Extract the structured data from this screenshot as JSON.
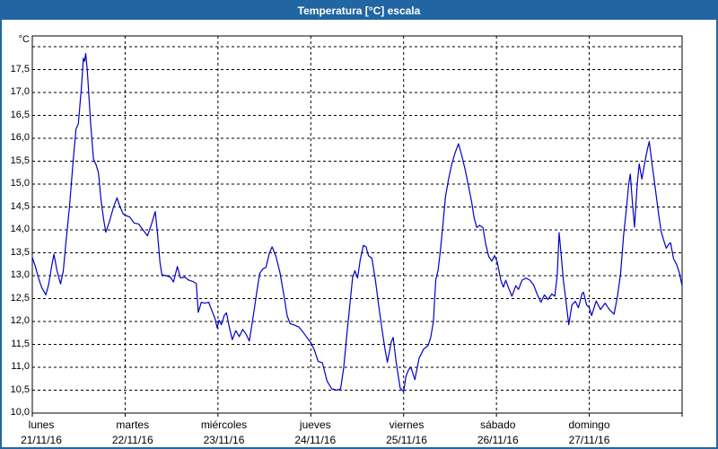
{
  "window": {
    "title": "Temperatura [°C] escala"
  },
  "colors": {
    "titlebar_bg": "#2166a2",
    "frame": "#2166a2",
    "line": "#0000c8",
    "grid": "#000000",
    "text": "#000000",
    "plot_bg": "#ffffff"
  },
  "chart_data": {
    "type": "line",
    "title": "Temperatura [°C] escala",
    "ylabel": "°C",
    "ylim": [
      10.0,
      18.2
    ],
    "ytick_step": 0.5,
    "grid": "dashed",
    "legend": "none",
    "yticks": [
      {
        "value": 17.5,
        "label": "17,5"
      },
      {
        "value": 17.0,
        "label": "17,0"
      },
      {
        "value": 16.5,
        "label": "16,5"
      },
      {
        "value": 16.0,
        "label": "16,0"
      },
      {
        "value": 15.5,
        "label": "15,5"
      },
      {
        "value": 15.0,
        "label": "15,0"
      },
      {
        "value": 14.5,
        "label": "14,5"
      },
      {
        "value": 14.0,
        "label": "14,0"
      },
      {
        "value": 13.5,
        "label": "13,5"
      },
      {
        "value": 13.0,
        "label": "13,0"
      },
      {
        "value": 12.5,
        "label": "12,5"
      },
      {
        "value": 12.0,
        "label": "12,0"
      },
      {
        "value": 11.5,
        "label": "11,5"
      },
      {
        "value": 11.0,
        "label": "11,0"
      },
      {
        "value": 10.5,
        "label": "10,5"
      },
      {
        "value": 10.0,
        "label": "10,0"
      }
    ],
    "days": [
      {
        "name": "lunes",
        "date": "21/11/16"
      },
      {
        "name": "martes",
        "date": "22/11/16"
      },
      {
        "name": "miércoles",
        "date": "23/11/16"
      },
      {
        "name": "jueves",
        "date": "24/11/16"
      },
      {
        "name": "viernes",
        "date": "25/11/16"
      },
      {
        "name": "sábado",
        "date": "26/11/16"
      },
      {
        "name": "domingo",
        "date": "27/11/16"
      }
    ],
    "x_unit": "hours_since_monday_00",
    "series": [
      {
        "name": "Temperatura",
        "color": "#0000c8",
        "points": [
          [
            0,
            13.4
          ],
          [
            0.8,
            13.2
          ],
          [
            1.6,
            12.95
          ],
          [
            2.4,
            12.75
          ],
          [
            3.5,
            12.58
          ],
          [
            4.2,
            12.8
          ],
          [
            5.0,
            13.2
          ],
          [
            5.6,
            13.47
          ],
          [
            6.4,
            13.1
          ],
          [
            7.3,
            12.82
          ],
          [
            8.0,
            13.1
          ],
          [
            8.6,
            13.65
          ],
          [
            9.6,
            14.5
          ],
          [
            10.6,
            15.55
          ],
          [
            11.3,
            16.2
          ],
          [
            11.9,
            16.32
          ],
          [
            12.7,
            17.1
          ],
          [
            13.2,
            17.75
          ],
          [
            13.5,
            17.68
          ],
          [
            13.8,
            17.85
          ],
          [
            14.2,
            17.5
          ],
          [
            15.1,
            16.3
          ],
          [
            15.8,
            15.55
          ],
          [
            16.5,
            15.42
          ],
          [
            17.1,
            15.25
          ],
          [
            17.7,
            14.7
          ],
          [
            18.4,
            14.25
          ],
          [
            19.0,
            13.95
          ],
          [
            20.0,
            14.2
          ],
          [
            21.0,
            14.5
          ],
          [
            21.9,
            14.7
          ],
          [
            22.7,
            14.5
          ],
          [
            23.5,
            14.35
          ],
          [
            24.0,
            14.32
          ],
          [
            25.2,
            14.28
          ],
          [
            26.3,
            14.15
          ],
          [
            27.5,
            14.13
          ],
          [
            28.6,
            14.0
          ],
          [
            29.8,
            13.87
          ],
          [
            30.9,
            14.15
          ],
          [
            31.8,
            14.4
          ],
          [
            32.4,
            13.9
          ],
          [
            33.0,
            13.3
          ],
          [
            33.5,
            13.02
          ],
          [
            34.6,
            13.0
          ],
          [
            35.7,
            12.97
          ],
          [
            36.5,
            12.86
          ],
          [
            37.5,
            13.2
          ],
          [
            38.3,
            12.95
          ],
          [
            39.4,
            12.97
          ],
          [
            40.5,
            12.9
          ],
          [
            41.6,
            12.87
          ],
          [
            42.4,
            12.83
          ],
          [
            42.9,
            12.2
          ],
          [
            43.7,
            12.42
          ],
          [
            44.6,
            12.4
          ],
          [
            45.6,
            12.42
          ],
          [
            46.5,
            12.22
          ],
          [
            47.2,
            12.07
          ],
          [
            47.8,
            11.86
          ],
          [
            48.3,
            12.03
          ],
          [
            48.9,
            11.93
          ],
          [
            49.6,
            12.13
          ],
          [
            50.2,
            12.19
          ],
          [
            51.0,
            11.85
          ],
          [
            51.7,
            11.6
          ],
          [
            52.6,
            11.8
          ],
          [
            53.5,
            11.67
          ],
          [
            54.4,
            11.83
          ],
          [
            55.3,
            11.72
          ],
          [
            56.1,
            11.57
          ],
          [
            57.2,
            12.16
          ],
          [
            58.1,
            12.68
          ],
          [
            58.8,
            13.05
          ],
          [
            59.6,
            13.15
          ],
          [
            60.4,
            13.18
          ],
          [
            61.3,
            13.5
          ],
          [
            62.0,
            13.63
          ],
          [
            63.0,
            13.42
          ],
          [
            64.0,
            13.08
          ],
          [
            65.0,
            12.6
          ],
          [
            65.9,
            12.12
          ],
          [
            66.7,
            11.95
          ],
          [
            67.8,
            11.92
          ],
          [
            68.9,
            11.88
          ],
          [
            69.9,
            11.78
          ],
          [
            71.0,
            11.65
          ],
          [
            72.0,
            11.54
          ],
          [
            72.9,
            11.38
          ],
          [
            73.9,
            11.13
          ],
          [
            75.0,
            11.1
          ],
          [
            76.2,
            10.7
          ],
          [
            77.4,
            10.53
          ],
          [
            78.7,
            10.5
          ],
          [
            79.7,
            10.53
          ],
          [
            80.5,
            10.98
          ],
          [
            81.3,
            11.7
          ],
          [
            82.1,
            12.36
          ],
          [
            82.8,
            12.95
          ],
          [
            83.4,
            13.11
          ],
          [
            84.1,
            12.95
          ],
          [
            84.8,
            13.35
          ],
          [
            85.6,
            13.66
          ],
          [
            86.3,
            13.63
          ],
          [
            86.9,
            13.44
          ],
          [
            87.8,
            13.38
          ],
          [
            88.7,
            12.9
          ],
          [
            89.5,
            12.38
          ],
          [
            90.3,
            11.9
          ],
          [
            91.1,
            11.44
          ],
          [
            91.8,
            11.11
          ],
          [
            92.8,
            11.55
          ],
          [
            93.3,
            11.65
          ],
          [
            94.1,
            11.1
          ],
          [
            95.1,
            10.55
          ],
          [
            96.0,
            10.47
          ],
          [
            96.6,
            10.8
          ],
          [
            97.3,
            10.95
          ],
          [
            97.9,
            11.0
          ],
          [
            98.9,
            10.73
          ],
          [
            100.0,
            11.2
          ],
          [
            101.2,
            11.4
          ],
          [
            102.3,
            11.47
          ],
          [
            103.0,
            11.65
          ],
          [
            103.7,
            12.0
          ],
          [
            104.3,
            12.9
          ],
          [
            104.9,
            13.12
          ],
          [
            105.5,
            13.55
          ],
          [
            106.1,
            14.05
          ],
          [
            106.8,
            14.72
          ],
          [
            107.6,
            15.1
          ],
          [
            108.4,
            15.42
          ],
          [
            109.3,
            15.68
          ],
          [
            110.2,
            15.88
          ],
          [
            111.1,
            15.6
          ],
          [
            112.0,
            15.28
          ],
          [
            112.8,
            14.95
          ],
          [
            113.6,
            14.6
          ],
          [
            114.2,
            14.28
          ],
          [
            114.9,
            14.05
          ],
          [
            115.6,
            14.1
          ],
          [
            116.5,
            14.05
          ],
          [
            117.2,
            13.7
          ],
          [
            118.0,
            13.42
          ],
          [
            118.8,
            13.32
          ],
          [
            119.5,
            13.44
          ],
          [
            120.2,
            13.3
          ],
          [
            121.2,
            12.88
          ],
          [
            121.8,
            12.75
          ],
          [
            122.4,
            12.9
          ],
          [
            123.2,
            12.72
          ],
          [
            124.0,
            12.55
          ],
          [
            125.0,
            12.78
          ],
          [
            125.7,
            12.7
          ],
          [
            126.6,
            12.9
          ],
          [
            127.6,
            12.95
          ],
          [
            128.7,
            12.9
          ],
          [
            129.6,
            12.8
          ],
          [
            130.5,
            12.6
          ],
          [
            131.5,
            12.42
          ],
          [
            132.4,
            12.58
          ],
          [
            133.3,
            12.48
          ],
          [
            134.3,
            12.6
          ],
          [
            135.1,
            12.55
          ],
          [
            135.7,
            13.0
          ],
          [
            136.2,
            13.94
          ],
          [
            136.8,
            13.4
          ],
          [
            137.3,
            12.9
          ],
          [
            137.9,
            12.5
          ],
          [
            138.7,
            11.93
          ],
          [
            139.5,
            12.36
          ],
          [
            140.4,
            12.44
          ],
          [
            141.2,
            12.3
          ],
          [
            142.1,
            12.6
          ],
          [
            142.5,
            12.64
          ],
          [
            143.3,
            12.36
          ],
          [
            144.0,
            12.3
          ],
          [
            144.6,
            12.13
          ],
          [
            145.8,
            12.45
          ],
          [
            146.9,
            12.26
          ],
          [
            148.1,
            12.4
          ],
          [
            149.3,
            12.25
          ],
          [
            150.4,
            12.16
          ],
          [
            151.3,
            12.55
          ],
          [
            152.1,
            13.05
          ],
          [
            152.9,
            13.9
          ],
          [
            153.6,
            14.45
          ],
          [
            154.2,
            15.0
          ],
          [
            154.6,
            15.22
          ],
          [
            155.2,
            14.55
          ],
          [
            155.7,
            14.06
          ],
          [
            156.4,
            15.0
          ],
          [
            156.9,
            15.44
          ],
          [
            157.6,
            15.11
          ],
          [
            158.3,
            15.45
          ],
          [
            159.0,
            15.75
          ],
          [
            159.5,
            15.93
          ],
          [
            160.3,
            15.4
          ],
          [
            161.1,
            14.88
          ],
          [
            161.9,
            14.36
          ],
          [
            162.6,
            13.96
          ],
          [
            163.4,
            13.73
          ],
          [
            163.9,
            13.6
          ],
          [
            164.5,
            13.68
          ],
          [
            165.0,
            13.72
          ],
          [
            165.8,
            13.37
          ],
          [
            166.6,
            13.24
          ],
          [
            167.3,
            13.06
          ],
          [
            168.0,
            12.78
          ]
        ]
      }
    ]
  }
}
